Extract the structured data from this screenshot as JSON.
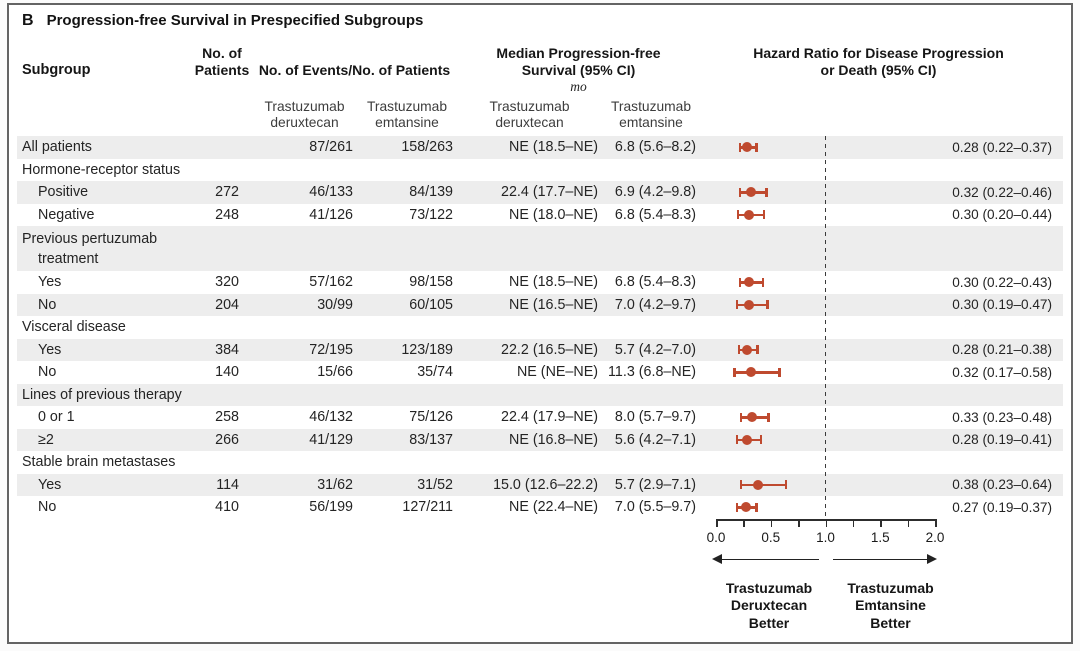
{
  "figure": {
    "panel_letter": "B",
    "title": "Progression-free Survival in Prespecified Subgroups"
  },
  "headers": {
    "subgroup": "Subgroup",
    "patients_lines": [
      "No. of",
      "Patients"
    ],
    "events": "No. of Events/No. of Patients",
    "median_lines": [
      "Median Progression-free",
      "Survival (95% CI)"
    ],
    "median_unit": "mo",
    "hazard_lines": [
      "Hazard Ratio for Disease Progression",
      "or Death (95% CI)"
    ],
    "arm_lines_a": [
      "Trastuzumab",
      "deruxtecan"
    ],
    "arm_lines_b": [
      "Trastuzumab",
      "emtansine"
    ]
  },
  "footer": {
    "better_left_lines": [
      "Trastuzumab",
      "Deruxtecan",
      "Better"
    ],
    "better_right_lines": [
      "Trastuzumab",
      "Emtansine",
      "Better"
    ]
  },
  "chart_data": {
    "type": "forest",
    "title": "Progression-free Survival in Prespecified Subgroups",
    "x_axis": {
      "range": [
        0.0,
        2.0
      ],
      "tick_labels": [
        "0.0",
        "0.5",
        "1.0",
        "1.5",
        "2.0"
      ],
      "minor_tick_step": 0.25,
      "reference_line": 1.0
    },
    "marker_color": "#bf4a2f",
    "rows": [
      {
        "label": "All patients",
        "patients": "",
        "events_td": "87/261",
        "events_te": "158/263",
        "median_td": "NE (18.5–NE)",
        "median_te": "6.8 (5.6–8.2)",
        "hr": 0.28,
        "ci": [
          0.22,
          0.37
        ],
        "hr_text": "0.28 (0.22–0.37)"
      },
      {
        "label": "Hormone-receptor status",
        "group": true
      },
      {
        "label": "Positive",
        "indent": true,
        "patients": "272",
        "events_td": "46/133",
        "events_te": "84/139",
        "median_td": "22.4 (17.7–NE)",
        "median_te": "6.9 (4.2–9.8)",
        "hr": 0.32,
        "ci": [
          0.22,
          0.46
        ],
        "hr_text": "0.32 (0.22–0.46)"
      },
      {
        "label": "Negative",
        "indent": true,
        "patients": "248",
        "events_td": "41/126",
        "events_te": "73/122",
        "median_td": "NE (18.0–NE)",
        "median_te": "6.8 (5.4–8.3)",
        "hr": 0.3,
        "ci": [
          0.2,
          0.44
        ],
        "hr_text": "0.30 (0.20–0.44)"
      },
      {
        "label": "Previous pertuzumab",
        "label2": "treatment",
        "group": true,
        "tall": true
      },
      {
        "label": "Yes",
        "indent": true,
        "patients": "320",
        "events_td": "57/162",
        "events_te": "98/158",
        "median_td": "NE (18.5–NE)",
        "median_te": "6.8 (5.4–8.3)",
        "hr": 0.3,
        "ci": [
          0.22,
          0.43
        ],
        "hr_text": "0.30 (0.22–0.43)"
      },
      {
        "label": "No",
        "indent": true,
        "patients": "204",
        "events_td": "30/99",
        "events_te": "60/105",
        "median_td": "NE (16.5–NE)",
        "median_te": "7.0 (4.2–9.7)",
        "hr": 0.3,
        "ci": [
          0.19,
          0.47
        ],
        "hr_text": "0.30 (0.19–0.47)"
      },
      {
        "label": "Visceral disease",
        "group": true
      },
      {
        "label": "Yes",
        "indent": true,
        "patients": "384",
        "events_td": "72/195",
        "events_te": "123/189",
        "median_td": "22.2 (16.5–NE)",
        "median_te": "5.7 (4.2–7.0)",
        "hr": 0.28,
        "ci": [
          0.21,
          0.38
        ],
        "hr_text": "0.28 (0.21–0.38)"
      },
      {
        "label": "No",
        "indent": true,
        "patients": "140",
        "events_td": "15/66",
        "events_te": "35/74",
        "median_td": "NE (NE–NE)",
        "median_te": "11.3 (6.8–NE)",
        "hr": 0.32,
        "ci": [
          0.17,
          0.58
        ],
        "hr_text": "0.32 (0.17–0.58)"
      },
      {
        "label": "Lines of previous therapy",
        "group": true
      },
      {
        "label": "0 or 1",
        "indent": true,
        "patients": "258",
        "events_td": "46/132",
        "events_te": "75/126",
        "median_td": "22.4 (17.9–NE)",
        "median_te": "8.0 (5.7–9.7)",
        "hr": 0.33,
        "ci": [
          0.23,
          0.48
        ],
        "hr_text": "0.33 (0.23–0.48)"
      },
      {
        "label": "≥2",
        "indent": true,
        "patients": "266",
        "events_td": "41/129",
        "events_te": "83/137",
        "median_td": "NE (16.8–NE)",
        "median_te": "5.6 (4.2–7.1)",
        "hr": 0.28,
        "ci": [
          0.19,
          0.41
        ],
        "hr_text": "0.28 (0.19–0.41)"
      },
      {
        "label": "Stable brain metastases",
        "group": true
      },
      {
        "label": "Yes",
        "indent": true,
        "patients": "114",
        "events_td": "31/62",
        "events_te": "31/52",
        "median_td": "15.0 (12.6–22.2)",
        "median_te": "5.7 (2.9–7.1)",
        "hr": 0.38,
        "ci": [
          0.23,
          0.64
        ],
        "hr_text": "0.38 (0.23–0.64)"
      },
      {
        "label": "No",
        "indent": true,
        "patients": "410",
        "events_td": "56/199",
        "events_te": "127/211",
        "median_td": "NE (22.4–NE)",
        "median_te": "7.0 (5.5–9.7)",
        "hr": 0.27,
        "ci": [
          0.19,
          0.37
        ],
        "hr_text": "0.27 (0.19–0.37)"
      }
    ]
  }
}
